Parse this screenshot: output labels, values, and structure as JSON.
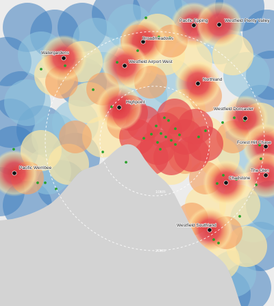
{
  "colors": {
    "background": "#e8e8e8",
    "water": "#d3d3d3",
    "land": "#ececec",
    "far": "#3f7fbf",
    "mid": "#8fc4de",
    "near": "#fde7a4",
    "close": "#f4a366",
    "core": "#e5484d",
    "centre": "#d9313a",
    "store_dot": "#111111",
    "green_dot": "#2aa02a",
    "ring_stroke": "#ffffff"
  },
  "distance_rings": [
    {
      "label": "10km"
    },
    {
      "label": "20km"
    }
  ],
  "centres": [
    {
      "name": "Pacific Epping",
      "lat": 0.0,
      "lon": 0.0
    },
    {
      "name": "Westfield Plenty Valley"
    },
    {
      "name": "Broadmeadows"
    },
    {
      "name": "Watergardens"
    },
    {
      "name": "Westfield Airport West"
    },
    {
      "name": "Northland"
    },
    {
      "name": "Highpoint"
    },
    {
      "name": "Westfield Doncaster"
    },
    {
      "name": "Forest Hill Chase"
    },
    {
      "name": "Pacific Werribee"
    },
    {
      "name": "The Glen"
    },
    {
      "name": "Chadstone"
    },
    {
      "name": "Westfield Southland"
    }
  ]
}
